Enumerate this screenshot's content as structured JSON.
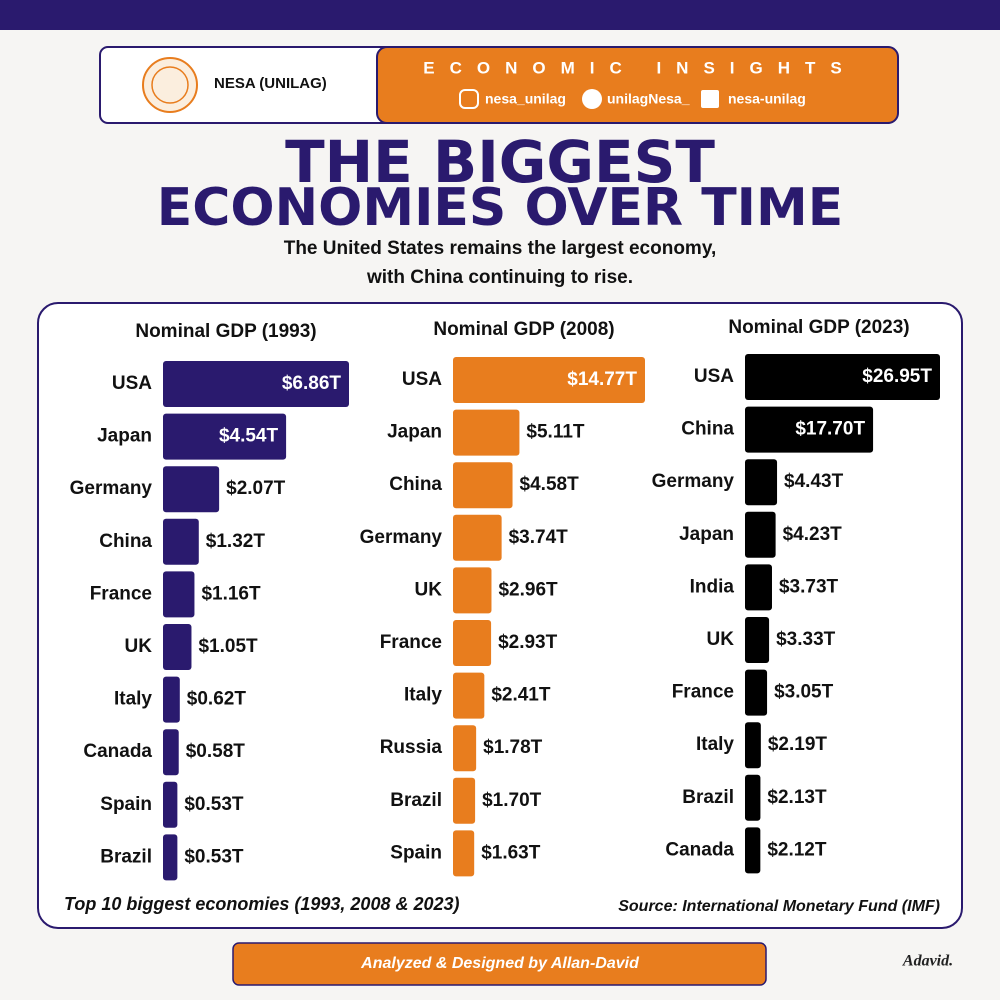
{
  "header": {
    "org": "NESA (UNILAG)",
    "banner": "ECONOMIC INSIGHTS",
    "socials": [
      "nesa_unilag",
      "unilagNesa_",
      "nesa-unilag"
    ]
  },
  "title": [
    "THE BIGGEST",
    "ECONOMIES OVER TIME"
  ],
  "subtitle": [
    "The United States remains the largest economy,",
    "with China continuing to rise."
  ],
  "chart_data": [
    {
      "type": "bar",
      "orientation": "horizontal",
      "title": "Nominal GDP (1993)",
      "color": "#2a1a6e",
      "categories": [
        "USA",
        "Japan",
        "Germany",
        "China",
        "France",
        "UK",
        "Italy",
        "Canada",
        "Spain",
        "Brazil"
      ],
      "values": [
        6.86,
        4.54,
        2.07,
        1.32,
        1.16,
        1.05,
        0.62,
        0.58,
        0.53,
        0.53
      ],
      "value_labels": [
        "$6.86T",
        "$4.54T",
        "$2.07T",
        "$1.32T",
        "$1.16T",
        "$1.05T",
        "$0.62T",
        "$0.58T",
        "$0.53T",
        "$0.53T"
      ]
    },
    {
      "type": "bar",
      "orientation": "horizontal",
      "title": "Nominal GDP (2008)",
      "color": "#e87d1e",
      "categories": [
        "USA",
        "Japan",
        "China",
        "Germany",
        "UK",
        "France",
        "Italy",
        "Russia",
        "Brazil",
        "Spain"
      ],
      "values": [
        14.77,
        5.11,
        4.58,
        3.74,
        2.96,
        2.93,
        2.41,
        1.78,
        1.7,
        1.63
      ],
      "value_labels": [
        "$14.77T",
        "$5.11T",
        "$4.58T",
        "$3.74T",
        "$2.96T",
        "$2.93T",
        "$2.41T",
        "$1.78T",
        "$1.70T",
        "$1.63T"
      ]
    },
    {
      "type": "bar",
      "orientation": "horizontal",
      "title": "Nominal GDP (2023)",
      "color": "#000000",
      "categories": [
        "USA",
        "China",
        "Germany",
        "Japan",
        "India",
        "UK",
        "France",
        "Italy",
        "Brazil",
        "Canada"
      ],
      "values": [
        26.95,
        17.7,
        4.43,
        4.23,
        3.73,
        3.33,
        3.05,
        2.19,
        2.13,
        2.12
      ],
      "value_labels": [
        "$26.95T",
        "$17.70T",
        "$4.43T",
        "$4.23T",
        "$3.73T",
        "$3.33T",
        "$3.05T",
        "$2.19T",
        "$2.13T",
        "$2.12T"
      ]
    }
  ],
  "caption": "Top 10 biggest economies (1993, 2008 & 2023)",
  "source": "Source: International Monetary Fund (IMF)",
  "credit": "Analyzed & Designed by Allan-David",
  "signature": "Adavid."
}
